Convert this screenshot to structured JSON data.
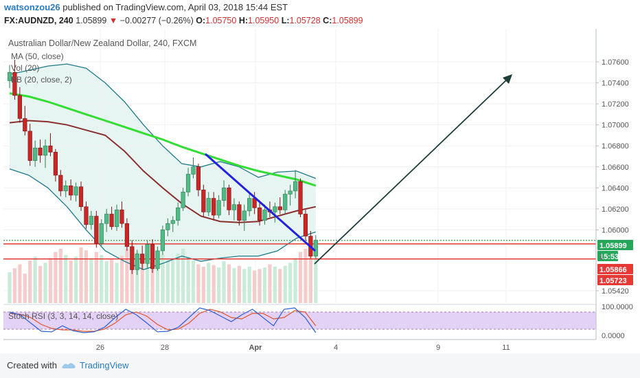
{
  "header": {
    "author": "watsonzou26",
    "published": "published on TradingView.com, April 03, 2018 15:44 EST",
    "symbol": "FX:AUDNZD, 240",
    "last": "1.05899",
    "change": "−0.00277 (−0.26%)",
    "o_label": "O:",
    "o": "1.05750",
    "h_label": "H:",
    "h": "1.05950",
    "l_label": "L:",
    "l": "1.05728",
    "c_label": "C:",
    "c": "1.05899"
  },
  "legend": {
    "title": "Australian Dollar/New Zealand Dollar, 240, FXCM",
    "ma": "MA (50, close)",
    "vol": "Vol (20)",
    "bb": "BB (20, close, 2)",
    "stoch": "Stoch RSI (3, 3, 14, 14, close)"
  },
  "price_axis": {
    "ticks": [
      "1.07600",
      "1.07400",
      "1.07200",
      "1.07000",
      "1.06800",
      "1.06600",
      "1.06400",
      "1.06200",
      "1.06000",
      "1.05420"
    ],
    "tags": [
      {
        "text": "1.05899",
        "color": "#26a65b"
      },
      {
        "text": "15:53",
        "color": "#26a65b"
      },
      {
        "text": "1.05866",
        "color": "#e53935"
      },
      {
        "text": "1.05723",
        "color": "#e53935"
      }
    ],
    "partial_label": "1"
  },
  "stoch_axis": {
    "ticks": [
      "100.0000",
      "0.0000"
    ]
  },
  "time_axis": {
    "labels": [
      "26",
      "28",
      "Apr",
      "4",
      "9",
      "11"
    ]
  },
  "footer": {
    "created": "Created with",
    "brand": "TradingView"
  },
  "colors": {
    "up": "#53b987",
    "down": "#c62828",
    "ma": "#33dd33",
    "bb_basis": "#8b2e2e",
    "bb_band": "#1f7a8c",
    "trend": "#2222dd",
    "arrow": "#1c3d3a",
    "stoch_k": "#2b5fd1",
    "stoch_d": "#e0562b"
  },
  "chart_data": {
    "type": "candlestick",
    "title": "Australian Dollar/New Zealand Dollar, 240, FXCM",
    "symbol": "FX:AUDNZD",
    "interval": "240",
    "ylim": [
      1.0542,
      1.0772
    ],
    "x_labels": [
      "26",
      "28",
      "Apr",
      "4",
      "9",
      "11"
    ],
    "candles": [
      {
        "o": 1.0742,
        "h": 1.0757,
        "l": 1.0735,
        "c": 1.075
      },
      {
        "o": 1.075,
        "h": 1.0762,
        "l": 1.0724,
        "c": 1.0728
      },
      {
        "o": 1.0728,
        "h": 1.0736,
        "l": 1.0702,
        "c": 1.0706
      },
      {
        "o": 1.0706,
        "h": 1.0718,
        "l": 1.069,
        "c": 1.0694
      },
      {
        "o": 1.0694,
        "h": 1.0701,
        "l": 1.0661,
        "c": 1.0666
      },
      {
        "o": 1.0666,
        "h": 1.0685,
        "l": 1.066,
        "c": 1.0678
      },
      {
        "o": 1.0678,
        "h": 1.0686,
        "l": 1.0664,
        "c": 1.0671
      },
      {
        "o": 1.0671,
        "h": 1.0686,
        "l": 1.0659,
        "c": 1.068
      },
      {
        "o": 1.068,
        "h": 1.0692,
        "l": 1.067,
        "c": 1.0674
      },
      {
        "o": 1.0674,
        "h": 1.0677,
        "l": 1.0646,
        "c": 1.0652
      },
      {
        "o": 1.0652,
        "h": 1.0657,
        "l": 1.0632,
        "c": 1.0637
      },
      {
        "o": 1.0637,
        "h": 1.0647,
        "l": 1.0631,
        "c": 1.0642
      },
      {
        "o": 1.0642,
        "h": 1.0648,
        "l": 1.0628,
        "c": 1.0633
      },
      {
        "o": 1.0633,
        "h": 1.0645,
        "l": 1.0627,
        "c": 1.0641
      },
      {
        "o": 1.0641,
        "h": 1.0646,
        "l": 1.0618,
        "c": 1.0622
      },
      {
        "o": 1.0622,
        "h": 1.0627,
        "l": 1.0601,
        "c": 1.0605
      },
      {
        "o": 1.0605,
        "h": 1.0618,
        "l": 1.06,
        "c": 1.0613
      },
      {
        "o": 1.0613,
        "h": 1.0618,
        "l": 1.0583,
        "c": 1.0587
      },
      {
        "o": 1.0587,
        "h": 1.061,
        "l": 1.0585,
        "c": 1.0606
      },
      {
        "o": 1.0606,
        "h": 1.062,
        "l": 1.0598,
        "c": 1.0615
      },
      {
        "o": 1.0615,
        "h": 1.0622,
        "l": 1.06,
        "c": 1.0603
      },
      {
        "o": 1.0603,
        "h": 1.0624,
        "l": 1.0599,
        "c": 1.0619
      },
      {
        "o": 1.0619,
        "h": 1.0627,
        "l": 1.0602,
        "c": 1.0606
      },
      {
        "o": 1.0606,
        "h": 1.0611,
        "l": 1.058,
        "c": 1.0584
      },
      {
        "o": 1.0584,
        "h": 1.059,
        "l": 1.0558,
        "c": 1.0562
      },
      {
        "o": 1.0562,
        "h": 1.0581,
        "l": 1.0557,
        "c": 1.0577
      },
      {
        "o": 1.0577,
        "h": 1.0585,
        "l": 1.0562,
        "c": 1.0568
      },
      {
        "o": 1.0568,
        "h": 1.059,
        "l": 1.0564,
        "c": 1.0586
      },
      {
        "o": 1.0586,
        "h": 1.0591,
        "l": 1.0559,
        "c": 1.0563
      },
      {
        "o": 1.0563,
        "h": 1.0584,
        "l": 1.0561,
        "c": 1.058
      },
      {
        "o": 1.058,
        "h": 1.0604,
        "l": 1.0576,
        "c": 1.06
      },
      {
        "o": 1.06,
        "h": 1.0611,
        "l": 1.0594,
        "c": 1.0606
      },
      {
        "o": 1.0606,
        "h": 1.0613,
        "l": 1.0598,
        "c": 1.0609
      },
      {
        "o": 1.0609,
        "h": 1.0626,
        "l": 1.0604,
        "c": 1.0621
      },
      {
        "o": 1.0621,
        "h": 1.064,
        "l": 1.0618,
        "c": 1.0636
      },
      {
        "o": 1.0636,
        "h": 1.0659,
        "l": 1.0632,
        "c": 1.0653
      },
      {
        "o": 1.0653,
        "h": 1.0669,
        "l": 1.0649,
        "c": 1.066
      },
      {
        "o": 1.066,
        "h": 1.0663,
        "l": 1.0632,
        "c": 1.0638
      },
      {
        "o": 1.0638,
        "h": 1.0643,
        "l": 1.0612,
        "c": 1.0617
      },
      {
        "o": 1.0617,
        "h": 1.0636,
        "l": 1.0613,
        "c": 1.063
      },
      {
        "o": 1.063,
        "h": 1.0636,
        "l": 1.0609,
        "c": 1.0614
      },
      {
        "o": 1.0614,
        "h": 1.0633,
        "l": 1.0611,
        "c": 1.0628
      },
      {
        "o": 1.0628,
        "h": 1.0647,
        "l": 1.0622,
        "c": 1.064
      },
      {
        "o": 1.064,
        "h": 1.0643,
        "l": 1.0614,
        "c": 1.0619
      },
      {
        "o": 1.0619,
        "h": 1.063,
        "l": 1.0609,
        "c": 1.0624
      },
      {
        "o": 1.0624,
        "h": 1.0627,
        "l": 1.0604,
        "c": 1.0609
      },
      {
        "o": 1.0609,
        "h": 1.0624,
        "l": 1.0599,
        "c": 1.0618
      },
      {
        "o": 1.0618,
        "h": 1.0634,
        "l": 1.0613,
        "c": 1.063
      },
      {
        "o": 1.063,
        "h": 1.0636,
        "l": 1.0615,
        "c": 1.0621
      },
      {
        "o": 1.0621,
        "h": 1.0626,
        "l": 1.0604,
        "c": 1.0609
      },
      {
        "o": 1.0609,
        "h": 1.0624,
        "l": 1.0605,
        "c": 1.0619
      },
      {
        "o": 1.0619,
        "h": 1.0627,
        "l": 1.0612,
        "c": 1.0617
      },
      {
        "o": 1.0617,
        "h": 1.0626,
        "l": 1.0607,
        "c": 1.0622
      },
      {
        "o": 1.0622,
        "h": 1.0631,
        "l": 1.0615,
        "c": 1.0619
      },
      {
        "o": 1.0619,
        "h": 1.0638,
        "l": 1.0615,
        "c": 1.0634
      },
      {
        "o": 1.0634,
        "h": 1.0643,
        "l": 1.0623,
        "c": 1.0637
      },
      {
        "o": 1.0637,
        "h": 1.0657,
        "l": 1.063,
        "c": 1.0646
      },
      {
        "o": 1.0646,
        "h": 1.0649,
        "l": 1.0612,
        "c": 1.0615
      },
      {
        "o": 1.0615,
        "h": 1.0619,
        "l": 1.059,
        "c": 1.0594
      },
      {
        "o": 1.0594,
        "h": 1.0599,
        "l": 1.0573,
        "c": 1.0575
      },
      {
        "o": 1.0575,
        "h": 1.0595,
        "l": 1.0573,
        "c": 1.059
      }
    ],
    "volume": [
      40,
      45,
      50,
      38,
      55,
      60,
      48,
      52,
      58,
      66,
      70,
      62,
      55,
      60,
      72,
      68,
      58,
      66,
      62,
      54,
      57,
      52,
      61,
      70,
      78,
      66,
      60,
      72,
      64,
      58,
      62,
      56,
      58,
      64,
      70,
      60,
      55,
      50,
      47,
      52,
      49,
      46,
      54,
      50,
      45,
      48,
      44,
      47,
      42,
      44,
      46,
      50,
      47,
      44,
      48,
      52,
      58,
      66,
      70,
      62,
      60
    ],
    "ma_50": [
      1.073,
      1.0727,
      1.0722,
      1.0716,
      1.071,
      1.0704,
      1.0698,
      1.0692,
      1.0686,
      1.0679,
      1.0673,
      1.0667,
      1.0661,
      1.0656,
      1.0652,
      1.0648,
      1.0642
    ],
    "bb_basis": [
      1.0702,
      1.0704,
      1.0703,
      1.07,
      1.0695,
      1.069,
      1.0675,
      1.0656,
      1.064,
      1.0625,
      1.0613,
      1.0608,
      1.0607,
      1.0608,
      1.0613,
      1.0618,
      1.0622
    ],
    "bb_upper": [
      1.0748,
      1.0752,
      1.0756,
      1.0758,
      1.0754,
      1.074,
      1.0722,
      1.07,
      1.068,
      1.0663,
      1.066,
      1.0665,
      1.066,
      1.065,
      1.0655,
      1.0656,
      1.0649
    ],
    "bb_lower": [
      1.0658,
      1.0652,
      1.064,
      1.0622,
      1.06,
      1.058,
      1.057,
      1.0562,
      1.0568,
      1.0575,
      1.057,
      1.0573,
      1.0575,
      1.0575,
      1.058,
      1.0592,
      1.0598
    ],
    "stoch_k": [
      80,
      70,
      40,
      10,
      8,
      30,
      12,
      5,
      8,
      25,
      60,
      90,
      70,
      40,
      8,
      10,
      25,
      60,
      95,
      85,
      65,
      45,
      70,
      90,
      60,
      30,
      90,
      95,
      60,
      5
    ],
    "stoch_d": [
      75,
      72,
      60,
      35,
      20,
      15,
      15,
      10,
      10,
      18,
      40,
      70,
      80,
      65,
      35,
      15,
      18,
      40,
      75,
      90,
      80,
      60,
      55,
      75,
      75,
      55,
      60,
      85,
      80,
      30
    ],
    "horizontal_levels": [
      1.05899,
      1.05866,
      1.05723
    ],
    "current_price": 1.05899
  }
}
